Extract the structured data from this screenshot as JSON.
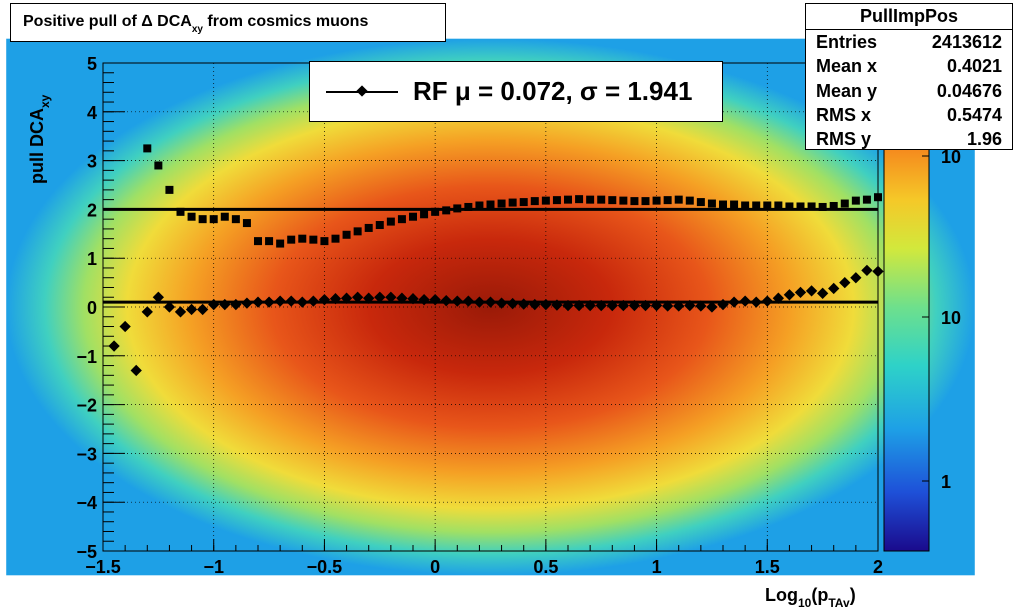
{
  "title": {
    "main": "Positive pull of Δ DCA",
    "sub": "xy",
    "rest": " from cosmics muons"
  },
  "legend": {
    "text": "RF μ =  0.072, σ =   1.941"
  },
  "stats": {
    "name": "PullImpPos",
    "rows": [
      {
        "k": "Entries",
        "v": "2413612"
      },
      {
        "k": "Mean x",
        "v": "0.4021"
      },
      {
        "k": "Mean y",
        "v": "0.04676"
      },
      {
        "k": "RMS x",
        "v": "0.5474"
      },
      {
        "k": "RMS y",
        "v": "1.96"
      }
    ]
  },
  "colors": {
    "marker": "#000000",
    "palette": [
      "#1a0a8c",
      "#1e50d8",
      "#1ea0e6",
      "#2ed2c8",
      "#6ee08c",
      "#d2e83c",
      "#f5c828",
      "#f58c1e",
      "#e64614",
      "#b41e0a"
    ]
  },
  "chart_data": {
    "type": "heatmap",
    "title": "Positive pull of Δ DCA_xy from cosmics muons",
    "xlabel": "Log10(pTAv)",
    "ylabel": "pull DCAxy",
    "xlim": [
      -1.5,
      2
    ],
    "ylim": [
      -5,
      5
    ],
    "x_ticks": [
      "−1.5",
      "−1",
      "−0.5",
      "0",
      "0.5",
      "1",
      "1.5",
      "2"
    ],
    "y_ticks": [
      "5",
      "4",
      "3",
      "2",
      "1",
      "0",
      "−1",
      "−2",
      "−3",
      "−4",
      "−5"
    ],
    "z_scale": "log",
    "z_ticks": [
      "10",
      "10",
      "1"
    ],
    "grid": true,
    "reference_lines": [
      2,
      0.1
    ],
    "series": [
      {
        "name": "mean",
        "points": [
          [
            -1.45,
            -0.8
          ],
          [
            -1.4,
            -0.4
          ],
          [
            -1.35,
            -1.3
          ],
          [
            -1.3,
            -0.1
          ],
          [
            -1.25,
            0.2
          ],
          [
            -1.2,
            0.0
          ],
          [
            -1.15,
            -0.1
          ],
          [
            -1.1,
            -0.05
          ],
          [
            -1.05,
            -0.05
          ],
          [
            -1.0,
            0.05
          ],
          [
            -0.95,
            0.05
          ],
          [
            -0.9,
            0.05
          ],
          [
            -0.85,
            0.08
          ],
          [
            -0.8,
            0.1
          ],
          [
            -0.75,
            0.1
          ],
          [
            -0.7,
            0.12
          ],
          [
            -0.65,
            0.12
          ],
          [
            -0.6,
            0.1
          ],
          [
            -0.55,
            0.12
          ],
          [
            -0.5,
            0.15
          ],
          [
            -0.45,
            0.17
          ],
          [
            -0.4,
            0.18
          ],
          [
            -0.35,
            0.2
          ],
          [
            -0.3,
            0.18
          ],
          [
            -0.25,
            0.2
          ],
          [
            -0.2,
            0.2
          ],
          [
            -0.15,
            0.18
          ],
          [
            -0.1,
            0.17
          ],
          [
            -0.05,
            0.15
          ],
          [
            0.0,
            0.15
          ],
          [
            0.05,
            0.13
          ],
          [
            0.1,
            0.12
          ],
          [
            0.15,
            0.12
          ],
          [
            0.2,
            0.1
          ],
          [
            0.25,
            0.1
          ],
          [
            0.3,
            0.08
          ],
          [
            0.35,
            0.07
          ],
          [
            0.4,
            0.06
          ],
          [
            0.45,
            0.05
          ],
          [
            0.5,
            0.05
          ],
          [
            0.55,
            0.04
          ],
          [
            0.6,
            0.03
          ],
          [
            0.65,
            0.03
          ],
          [
            0.7,
            0.03
          ],
          [
            0.75,
            0.03
          ],
          [
            0.8,
            0.03
          ],
          [
            0.85,
            0.03
          ],
          [
            0.9,
            0.03
          ],
          [
            0.95,
            0.03
          ],
          [
            1.0,
            0.03
          ],
          [
            1.05,
            0.02
          ],
          [
            1.1,
            0.02
          ],
          [
            1.15,
            0.03
          ],
          [
            1.2,
            0.02
          ],
          [
            1.25,
            0.0
          ],
          [
            1.3,
            0.05
          ],
          [
            1.35,
            0.1
          ],
          [
            1.4,
            0.12
          ],
          [
            1.45,
            0.1
          ],
          [
            1.5,
            0.12
          ],
          [
            1.55,
            0.18
          ],
          [
            1.6,
            0.25
          ],
          [
            1.65,
            0.3
          ],
          [
            1.7,
            0.33
          ],
          [
            1.75,
            0.28
          ],
          [
            1.8,
            0.38
          ],
          [
            1.85,
            0.5
          ],
          [
            1.9,
            0.6
          ],
          [
            1.95,
            0.75
          ],
          [
            2.0,
            0.73
          ]
        ]
      },
      {
        "name": "rms",
        "points": [
          [
            -1.3,
            3.25
          ],
          [
            -1.25,
            2.9
          ],
          [
            -1.2,
            2.4
          ],
          [
            -1.15,
            1.95
          ],
          [
            -1.1,
            1.85
          ],
          [
            -1.05,
            1.8
          ],
          [
            -1.0,
            1.8
          ],
          [
            -0.95,
            1.85
          ],
          [
            -0.9,
            1.8
          ],
          [
            -0.85,
            1.72
          ],
          [
            -0.8,
            1.35
          ],
          [
            -0.75,
            1.35
          ],
          [
            -0.7,
            1.3
          ],
          [
            -0.65,
            1.38
          ],
          [
            -0.6,
            1.4
          ],
          [
            -0.55,
            1.38
          ],
          [
            -0.5,
            1.35
          ],
          [
            -0.45,
            1.4
          ],
          [
            -0.4,
            1.48
          ],
          [
            -0.35,
            1.55
          ],
          [
            -0.3,
            1.62
          ],
          [
            -0.25,
            1.68
          ],
          [
            -0.2,
            1.75
          ],
          [
            -0.15,
            1.8
          ],
          [
            -0.1,
            1.85
          ],
          [
            -0.05,
            1.9
          ],
          [
            0.0,
            1.95
          ],
          [
            0.05,
            1.98
          ],
          [
            0.1,
            2.02
          ],
          [
            0.15,
            2.05
          ],
          [
            0.2,
            2.08
          ],
          [
            0.25,
            2.1
          ],
          [
            0.3,
            2.12
          ],
          [
            0.35,
            2.14
          ],
          [
            0.4,
            2.15
          ],
          [
            0.45,
            2.17
          ],
          [
            0.5,
            2.18
          ],
          [
            0.55,
            2.19
          ],
          [
            0.6,
            2.2
          ],
          [
            0.65,
            2.21
          ],
          [
            0.7,
            2.2
          ],
          [
            0.75,
            2.2
          ],
          [
            0.8,
            2.19
          ],
          [
            0.85,
            2.18
          ],
          [
            0.9,
            2.17
          ],
          [
            0.95,
            2.17
          ],
          [
            1.0,
            2.18
          ],
          [
            1.05,
            2.19
          ],
          [
            1.1,
            2.2
          ],
          [
            1.15,
            2.18
          ],
          [
            1.2,
            2.15
          ],
          [
            1.25,
            2.12
          ],
          [
            1.3,
            2.1
          ],
          [
            1.35,
            2.1
          ],
          [
            1.4,
            2.08
          ],
          [
            1.45,
            2.08
          ],
          [
            1.5,
            2.08
          ],
          [
            1.55,
            2.08
          ],
          [
            1.6,
            2.06
          ],
          [
            1.65,
            2.06
          ],
          [
            1.7,
            2.06
          ],
          [
            1.75,
            2.05
          ],
          [
            1.8,
            2.07
          ],
          [
            1.85,
            2.12
          ],
          [
            1.9,
            2.18
          ],
          [
            1.95,
            2.2
          ],
          [
            2.0,
            2.25
          ]
        ]
      }
    ]
  }
}
